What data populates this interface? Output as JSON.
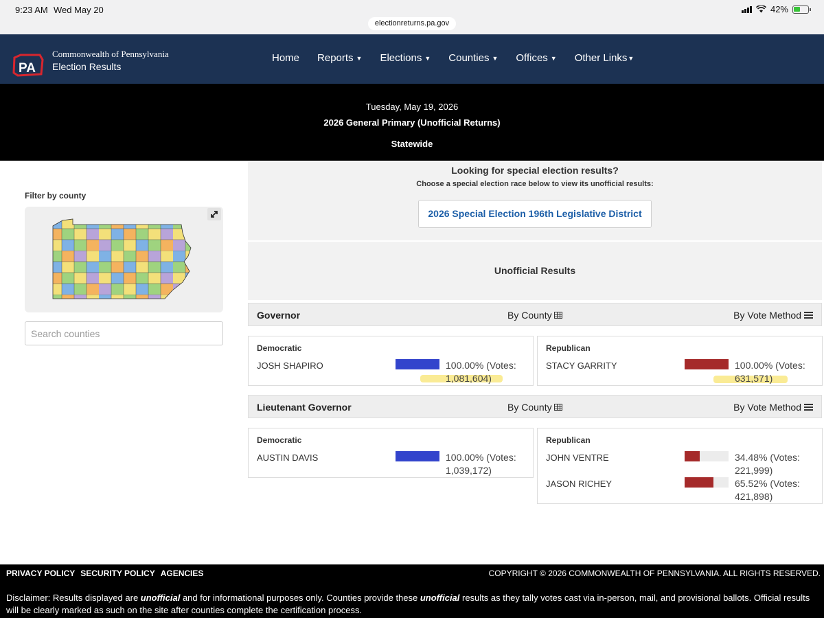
{
  "status_bar": {
    "time": "9:23 AM",
    "date": "Wed May 20",
    "battery": "42%",
    "url": "electionreturns.pa.gov"
  },
  "nav": {
    "brand_line1": "Commonwealth of Pennsylvania",
    "brand_line2": "Election Results",
    "logo_text": "PA",
    "items": [
      "Home",
      "Reports",
      "Elections",
      "Counties",
      "Offices",
      "Other Links"
    ]
  },
  "header": {
    "date": "Tuesday, May 19, 2026",
    "election": "2026 General Primary (Unofficial Returns)",
    "scope": "Statewide"
  },
  "sidebar": {
    "filter_label": "Filter by county",
    "search_placeholder": "Search counties"
  },
  "special": {
    "title": "Looking for special election results?",
    "subtitle": "Choose a special election race below to view its unofficial results:",
    "button": "2026 Special Election 196th Legislative District"
  },
  "results_title": "Unofficial Results",
  "by_county_label": "By County",
  "by_method_label": "By Vote Method",
  "races": [
    {
      "name": "Governor",
      "parties": [
        {
          "party": "Democratic",
          "candidates": [
            {
              "name": "JOSH SHAPIRO",
              "pct_text": "100.00% (Votes:",
              "votes_text": "1,081,604)",
              "fraction": 1.0
            }
          ]
        },
        {
          "party": "Republican",
          "candidates": [
            {
              "name": "STACY GARRITY",
              "pct_text": "100.00% (Votes:",
              "votes_text": "631,571)",
              "fraction": 1.0
            }
          ]
        }
      ]
    },
    {
      "name": "Lieutenant Governor",
      "parties": [
        {
          "party": "Democratic",
          "candidates": [
            {
              "name": "AUSTIN DAVIS",
              "pct_text": "100.00% (Votes:",
              "votes_text": "1,039,172)",
              "fraction": 1.0
            }
          ]
        },
        {
          "party": "Republican",
          "candidates": [
            {
              "name": "JOHN VENTRE",
              "pct_text": "34.48% (Votes:",
              "votes_text": "221,999)",
              "fraction": 0.3448
            },
            {
              "name": "JASON RICHEY",
              "pct_text": "65.52% (Votes:",
              "votes_text": "421,898)",
              "fraction": 0.6552
            }
          ]
        }
      ]
    }
  ],
  "colors": {
    "democratic": "#3344cc",
    "republican": "#a52a2a",
    "nav": "#1c3253"
  },
  "footer": {
    "links": [
      "PRIVACY POLICY",
      "SECURITY POLICY",
      "AGENCIES"
    ],
    "copyright": "COPYRIGHT © 2026 COMMONWEALTH OF PENNSYLVANIA. ALL RIGHTS RESERVED.",
    "disclaimer_1": "Disclaimer: Results displayed are ",
    "disclaimer_em1": "unofficial",
    "disclaimer_2": " and for informational purposes only. Counties provide these ",
    "disclaimer_em2": "unofficial",
    "disclaimer_3": " results as they tally votes cast via in-person, mail, and provisional ballots. Official results will be clearly marked as such on the site after counties complete the certification process."
  }
}
